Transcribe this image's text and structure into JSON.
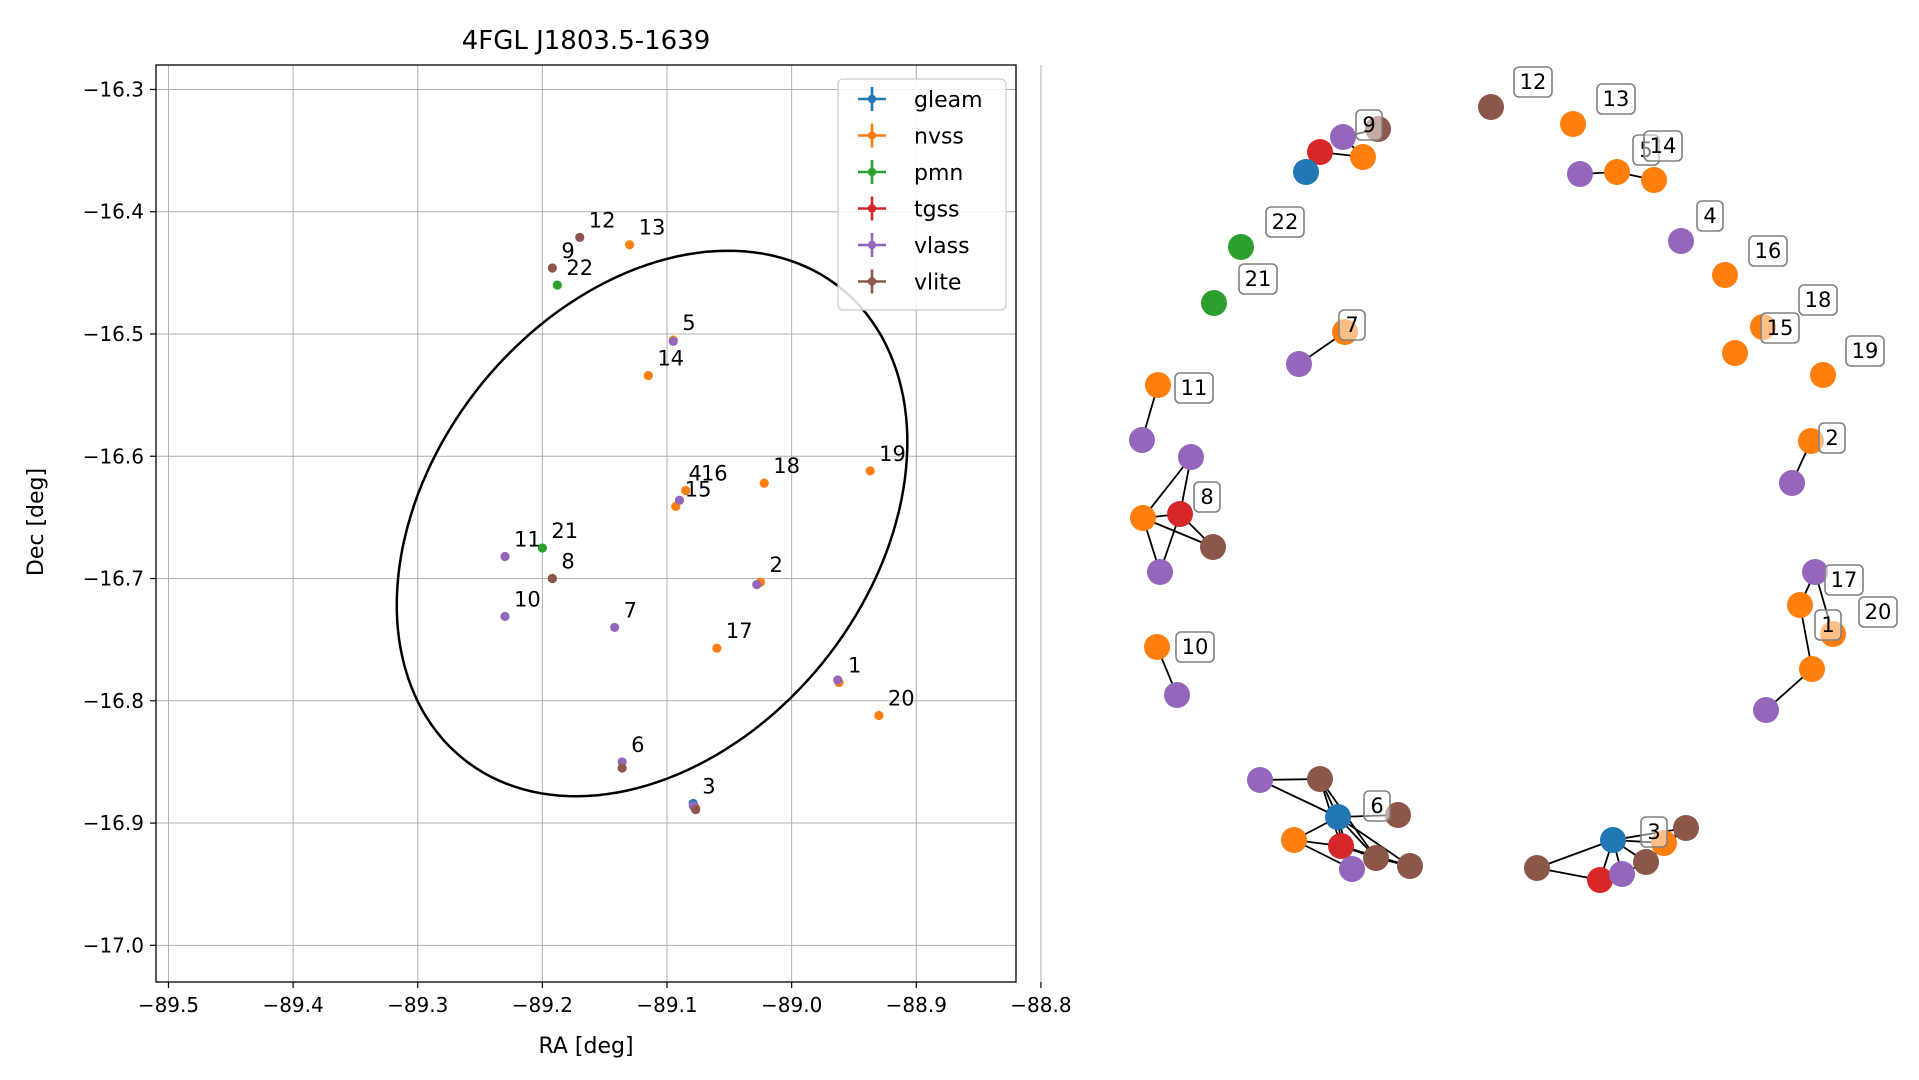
{
  "chart_data": [
    {
      "type": "scatter",
      "title": "4FGL J1803.5-1639",
      "xlabel": "RA [deg]",
      "ylabel": "Dec [deg]",
      "xlim": [
        -89.51,
        -88.82
      ],
      "ylim": [
        -17.03,
        -16.28
      ],
      "xticks": [
        -89.5,
        -89.4,
        -89.3,
        -89.2,
        -89.1,
        -89.0,
        -88.9,
        -88.8
      ],
      "yticks": [
        -16.3,
        -16.4,
        -16.5,
        -16.6,
        -16.7,
        -16.8,
        -16.9,
        -17.0
      ],
      "grid": true,
      "legend_position": "top-right",
      "series": [
        {
          "name": "gleam",
          "color": "#1f77b4",
          "points": [
            [
              -89.079,
              -16.884
            ]
          ]
        },
        {
          "name": "nvss",
          "color": "#ff7f0e",
          "points": [
            [
              -89.13,
              -16.427
            ],
            [
              -89.115,
              -16.534
            ],
            [
              -89.095,
              -16.505
            ],
            [
              -89.085,
              -16.628
            ],
            [
              -89.093,
              -16.641
            ],
            [
              -89.022,
              -16.622
            ],
            [
              -88.937,
              -16.612
            ],
            [
              -89.025,
              -16.703
            ],
            [
              -89.06,
              -16.757
            ],
            [
              -88.962,
              -16.785
            ],
            [
              -88.93,
              -16.812
            ],
            [
              -89.077,
              -16.888
            ]
          ]
        },
        {
          "name": "pmn",
          "color": "#2ca02c",
          "points": [
            [
              -89.188,
              -16.46
            ],
            [
              -89.2,
              -16.675
            ]
          ]
        },
        {
          "name": "tgss",
          "color": "#d62728",
          "points": [
            [
              -89.192,
              -16.7
            ],
            [
              -89.078,
              -16.887
            ]
          ]
        },
        {
          "name": "vlass",
          "color": "#9467bd",
          "points": [
            [
              -89.095,
              -16.506
            ],
            [
              -89.09,
              -16.636
            ],
            [
              -89.028,
              -16.705
            ],
            [
              -89.23,
              -16.682
            ],
            [
              -89.23,
              -16.731
            ],
            [
              -89.142,
              -16.74
            ],
            [
              -88.963,
              -16.783
            ],
            [
              -89.136,
              -16.85
            ],
            [
              -89.079,
              -16.886
            ]
          ]
        },
        {
          "name": "vlite",
          "color": "#8c564b",
          "points": [
            [
              -89.17,
              -16.421
            ],
            [
              -89.192,
              -16.446
            ],
            [
              -89.192,
              -16.7
            ],
            [
              -89.136,
              -16.855
            ],
            [
              -89.077,
              -16.889
            ]
          ]
        }
      ],
      "point_labels": [
        {
          "text": "12",
          "x": -89.17,
          "y": -16.421
        },
        {
          "text": "13",
          "x": -89.13,
          "y": -16.427
        },
        {
          "text": "9",
          "x": -89.192,
          "y": -16.446
        },
        {
          "text": "22",
          "x": -89.188,
          "y": -16.46
        },
        {
          "text": "5",
          "x": -89.095,
          "y": -16.505
        },
        {
          "text": "14",
          "x": -89.115,
          "y": -16.534
        },
        {
          "text": "4",
          "x": -89.09,
          "y": -16.628
        },
        {
          "text": "16",
          "x": -89.08,
          "y": -16.628
        },
        {
          "text": "15",
          "x": -89.093,
          "y": -16.641
        },
        {
          "text": "18",
          "x": -89.022,
          "y": -16.622
        },
        {
          "text": "19",
          "x": -88.937,
          "y": -16.612
        },
        {
          "text": "11",
          "x": -89.23,
          "y": -16.682
        },
        {
          "text": "21",
          "x": -89.2,
          "y": -16.675
        },
        {
          "text": "8",
          "x": -89.192,
          "y": -16.7
        },
        {
          "text": "2",
          "x": -89.025,
          "y": -16.703
        },
        {
          "text": "10",
          "x": -89.23,
          "y": -16.731
        },
        {
          "text": "7",
          "x": -89.142,
          "y": -16.74
        },
        {
          "text": "17",
          "x": -89.06,
          "y": -16.757
        },
        {
          "text": "1",
          "x": -88.962,
          "y": -16.785
        },
        {
          "text": "20",
          "x": -88.93,
          "y": -16.812
        },
        {
          "text": "6",
          "x": -89.136,
          "y": -16.85
        },
        {
          "text": "3",
          "x": -89.079,
          "y": -16.884
        }
      ],
      "ellipse": {
        "center": [
          -89.112,
          -16.655
        ],
        "semi_axis_a": 0.245,
        "semi_axis_b": 0.178,
        "angle_deg": 53
      }
    },
    {
      "type": "network",
      "edges_color": "#000000",
      "node_colors": {
        "gleam": "#1f77b4",
        "nvss": "#ff7f0e",
        "pmn": "#2ca02c",
        "tgss": "#d62728",
        "vlass": "#9467bd",
        "vlite": "#8c564b"
      }
    }
  ]
}
